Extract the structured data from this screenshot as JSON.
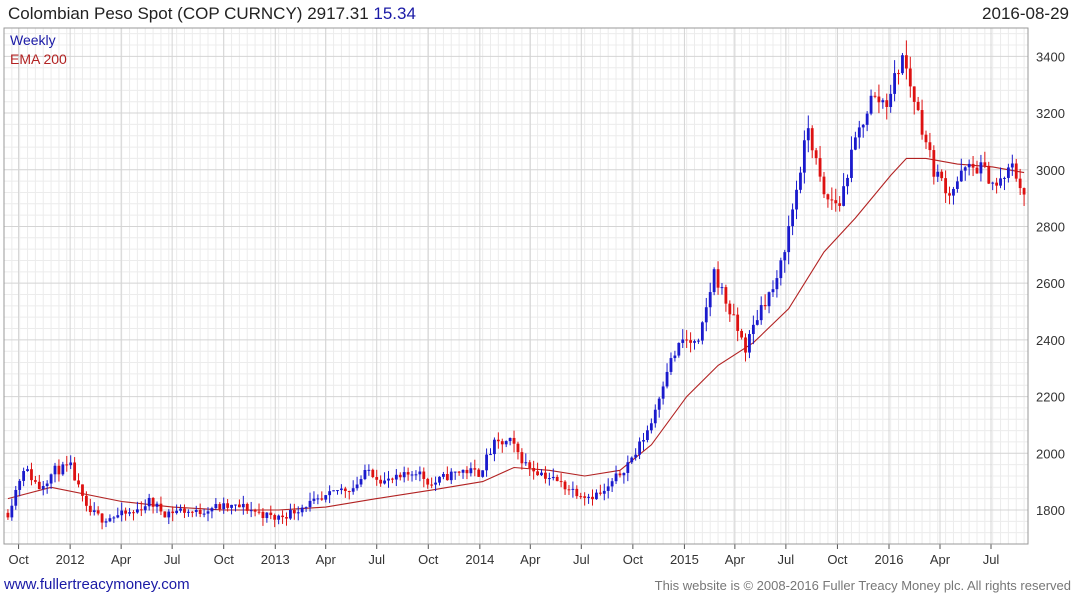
{
  "header": {
    "title": "Colombian Peso Spot (COP CURNCY)",
    "last": "2917.31",
    "change": "15.34",
    "date": "2016-08-29"
  },
  "footer": {
    "site": "www.fullertreacymoney.com",
    "copyright": "This website is © 2008-2016 Fuller Treacy Money plc. All rights reserved"
  },
  "colors": {
    "up": "#1a1acc",
    "down": "#dd1111",
    "ema": "#b22222",
    "grid": "#d4d4d4"
  },
  "chart_data": {
    "type": "candlestick",
    "frequency": "Weekly",
    "legend": [
      {
        "name": "Weekly",
        "color": "#1a1aa6"
      },
      {
        "name": "EMA 200",
        "color": "#b22222"
      }
    ],
    "xlim": [
      "2011-09-05",
      "2016-09-05"
    ],
    "ylim": [
      1680,
      3500
    ],
    "y_ticks": [
      1800,
      2000,
      2200,
      2400,
      2600,
      2800,
      3000,
      3200,
      3400
    ],
    "x_ticks": [
      {
        "label": "Oct",
        "date": "2011-10-01"
      },
      {
        "label": "2012",
        "date": "2012-01-01"
      },
      {
        "label": "Apr",
        "date": "2012-04-01"
      },
      {
        "label": "Jul",
        "date": "2012-07-01"
      },
      {
        "label": "Oct",
        "date": "2012-10-01"
      },
      {
        "label": "2013",
        "date": "2013-01-01"
      },
      {
        "label": "Apr",
        "date": "2013-04-01"
      },
      {
        "label": "Jul",
        "date": "2013-07-01"
      },
      {
        "label": "Oct",
        "date": "2013-10-01"
      },
      {
        "label": "2014",
        "date": "2014-01-01"
      },
      {
        "label": "Apr",
        "date": "2014-04-01"
      },
      {
        "label": "Jul",
        "date": "2014-07-01"
      },
      {
        "label": "Oct",
        "date": "2014-10-01"
      },
      {
        "label": "2015",
        "date": "2015-01-01"
      },
      {
        "label": "Apr",
        "date": "2015-04-01"
      },
      {
        "label": "Jul",
        "date": "2015-07-01"
      },
      {
        "label": "Oct",
        "date": "2015-10-01"
      },
      {
        "label": "2016",
        "date": "2016-01-01"
      },
      {
        "label": "Apr",
        "date": "2016-04-01"
      },
      {
        "label": "Jul",
        "date": "2016-07-01"
      }
    ],
    "closes": {
      "dates": [
        "2011-09-12",
        "2011-10-10",
        "2011-11-07",
        "2011-12-05",
        "2012-01-02",
        "2012-01-30",
        "2012-02-27",
        "2012-03-26",
        "2012-04-23",
        "2012-05-21",
        "2012-06-18",
        "2012-07-16",
        "2012-08-13",
        "2012-09-10",
        "2012-10-08",
        "2012-11-05",
        "2012-12-03",
        "2012-12-31",
        "2013-01-28",
        "2013-02-25",
        "2013-03-25",
        "2013-04-22",
        "2013-05-20",
        "2013-06-17",
        "2013-07-15",
        "2013-08-12",
        "2013-09-09",
        "2013-10-07",
        "2013-11-04",
        "2013-12-02",
        "2013-12-30",
        "2014-01-27",
        "2014-02-24",
        "2014-03-24",
        "2014-04-21",
        "2014-05-19",
        "2014-06-16",
        "2014-07-14",
        "2014-08-11",
        "2014-09-08",
        "2014-10-06",
        "2014-11-03",
        "2014-12-01",
        "2014-12-29",
        "2015-01-26",
        "2015-02-23",
        "2015-03-23",
        "2015-04-20",
        "2015-05-18",
        "2015-06-15",
        "2015-07-13",
        "2015-08-10",
        "2015-09-07",
        "2015-10-05",
        "2015-11-02",
        "2015-11-30",
        "2015-12-28",
        "2016-01-25",
        "2016-02-22",
        "2016-03-21",
        "2016-04-18",
        "2016-05-16",
        "2016-06-13",
        "2016-07-11",
        "2016-08-08",
        "2016-08-29"
      ],
      "values": [
        1790,
        1950,
        1880,
        1940,
        1950,
        1800,
        1770,
        1780,
        1790,
        1830,
        1790,
        1800,
        1790,
        1810,
        1810,
        1810,
        1790,
        1770,
        1790,
        1820,
        1830,
        1870,
        1880,
        1940,
        1900,
        1910,
        1940,
        1890,
        1920,
        1940,
        1930,
        2030,
        2040,
        1960,
        1930,
        1900,
        1870,
        1850,
        1860,
        1930,
        2000,
        2110,
        2300,
        2400,
        2380,
        2640,
        2500,
        2370,
        2520,
        2600,
        2860,
        3150,
        2900,
        2880,
        3100,
        3250,
        3240,
        3400,
        3200,
        3000,
        2920,
        3000,
        3010,
        2940,
        3010,
        2917.31
      ]
    },
    "ema200": {
      "dates": [
        "2011-09-12",
        "2011-11-28",
        "2012-04-02",
        "2012-07-02",
        "2012-10-01",
        "2013-01-07",
        "2013-04-01",
        "2013-07-01",
        "2013-10-07",
        "2014-01-06",
        "2014-03-03",
        "2014-05-05",
        "2014-07-07",
        "2014-09-08",
        "2014-11-03",
        "2015-01-05",
        "2015-03-02",
        "2015-05-04",
        "2015-07-06",
        "2015-09-07",
        "2015-11-02",
        "2016-01-04",
        "2016-02-01",
        "2016-03-07",
        "2016-05-02",
        "2016-07-04",
        "2016-08-29"
      ],
      "values": [
        1840,
        1880,
        1830,
        1810,
        1800,
        1800,
        1810,
        1840,
        1870,
        1900,
        1950,
        1940,
        1920,
        1940,
        2030,
        2200,
        2310,
        2390,
        2510,
        2710,
        2830,
        2980,
        3040,
        3040,
        3020,
        3010,
        2990
      ]
    }
  }
}
